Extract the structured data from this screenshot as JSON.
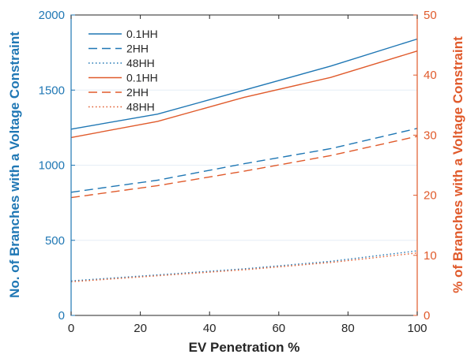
{
  "chart_data": {
    "type": "line",
    "xlabel": "EV Penetration %",
    "ylabel_left": "No. of Branches with a Voltage Constraint",
    "ylabel_right": "% of Branches with a Voltage Constraint",
    "xlim": [
      0,
      100
    ],
    "ylim_left": [
      0,
      2000
    ],
    "ylim_right": [
      0,
      50
    ],
    "x_ticks": [
      "0",
      "20",
      "40",
      "60",
      "80",
      "100"
    ],
    "y_left_ticks": [
      "0",
      "500",
      "1000",
      "1500",
      "2000"
    ],
    "y_right_ticks": [
      "0",
      "10",
      "20",
      "30",
      "40",
      "50"
    ],
    "grid": "horizontal",
    "legend_position": "top-left",
    "colors": {
      "left": "#1f77b4",
      "right": "#e05a2b"
    },
    "x": [
      0,
      25,
      50,
      75,
      100
    ],
    "series": [
      {
        "name": "0.1HH",
        "axis": "left",
        "style": "solid",
        "values": [
          1240,
          1340,
          1500,
          1660,
          1840
        ]
      },
      {
        "name": "2HH",
        "axis": "left",
        "style": "dashed",
        "values": [
          820,
          900,
          1010,
          1110,
          1245
        ]
      },
      {
        "name": "48HH",
        "axis": "left",
        "style": "dotted",
        "values": [
          230,
          270,
          310,
          360,
          430
        ]
      },
      {
        "name": "0.1HH",
        "axis": "right",
        "style": "solid",
        "values": [
          29.6,
          32.3,
          36.3,
          39.6,
          44
        ]
      },
      {
        "name": "2HH",
        "axis": "right",
        "style": "dashed",
        "values": [
          19.6,
          21.6,
          24,
          26.6,
          29.8
        ]
      },
      {
        "name": "48HH",
        "axis": "right",
        "style": "dotted",
        "values": [
          5.6,
          6.6,
          7.6,
          8.8,
          10.4
        ]
      }
    ]
  }
}
